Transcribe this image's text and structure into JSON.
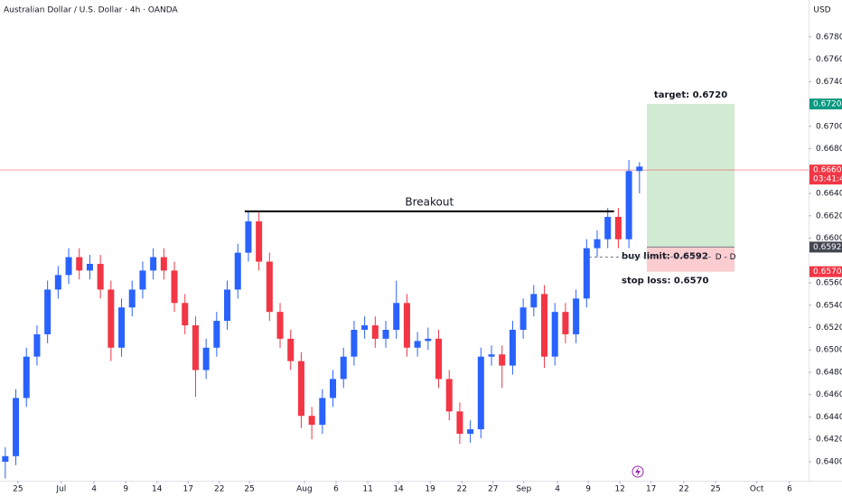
{
  "chart_data": {
    "type": "candlestick",
    "title": "Australian Dollar / U.S. Dollar · 4h · OANDA",
    "currency": "USD",
    "x": [
      1,
      3,
      5,
      7,
      9,
      11,
      13,
      15,
      17,
      19,
      21,
      23,
      25,
      27,
      29,
      31,
      33,
      35,
      37,
      39,
      41,
      43,
      45,
      47,
      49,
      51,
      53,
      55,
      57,
      59,
      61,
      63,
      65,
      67,
      69,
      71,
      73,
      75,
      77,
      79,
      81,
      83,
      85,
      87,
      89,
      91,
      93,
      95,
      97,
      99,
      101,
      103,
      105,
      107,
      109,
      111,
      113,
      115,
      117,
      119,
      121
    ],
    "open": [
      0.64,
      0.6405,
      0.6457,
      0.6494,
      0.6514,
      0.6554,
      0.6567,
      0.6583,
      0.6571,
      0.6577,
      0.6554,
      0.6502,
      0.6538,
      0.6554,
      0.6571,
      0.6583,
      0.6571,
      0.6542,
      0.6522,
      0.6482,
      0.6502,
      0.6526,
      0.6554,
      0.6587,
      0.6615,
      0.6579,
      0.6534,
      0.651,
      0.649,
      0.6441,
      0.6433,
      0.6457,
      0.6474,
      0.6494,
      0.6518,
      0.6522,
      0.651,
      0.6518,
      0.6542,
      0.6502,
      0.6508,
      0.651,
      0.6474,
      0.6445,
      0.6425,
      0.6429,
      0.6494,
      0.6496,
      0.6486,
      0.6518,
      0.6538,
      0.655,
      0.6494,
      0.6534,
      0.6514,
      0.6546,
      0.6591,
      0.6599,
      0.6619,
      0.6599,
      0.666
    ],
    "high": [
      0.6413,
      0.6465,
      0.6502,
      0.6522,
      0.6562,
      0.6575,
      0.6591,
      0.6591,
      0.6585,
      0.6585,
      0.6562,
      0.6546,
      0.6562,
      0.6579,
      0.6591,
      0.6591,
      0.6579,
      0.655,
      0.653,
      0.651,
      0.6534,
      0.6562,
      0.6595,
      0.6624,
      0.6623,
      0.6587,
      0.6542,
      0.6518,
      0.6498,
      0.6449,
      0.6465,
      0.6482,
      0.6502,
      0.6526,
      0.653,
      0.653,
      0.6526,
      0.6562,
      0.655,
      0.6516,
      0.652,
      0.6518,
      0.6482,
      0.6453,
      0.6437,
      0.6502,
      0.6504,
      0.6504,
      0.6526,
      0.6546,
      0.6558,
      0.6558,
      0.6542,
      0.6542,
      0.6554,
      0.6599,
      0.6607,
      0.6627,
      0.6627,
      0.667,
      0.6668
    ],
    "low": [
      0.6385,
      0.6397,
      0.6449,
      0.6486,
      0.6506,
      0.6546,
      0.6559,
      0.6563,
      0.6563,
      0.6546,
      0.649,
      0.6494,
      0.653,
      0.6546,
      0.6563,
      0.6563,
      0.6534,
      0.6514,
      0.6458,
      0.6474,
      0.6494,
      0.6518,
      0.6546,
      0.6579,
      0.6571,
      0.6526,
      0.6502,
      0.6482,
      0.643,
      0.642,
      0.6425,
      0.6449,
      0.6466,
      0.6486,
      0.651,
      0.6502,
      0.6502,
      0.651,
      0.6494,
      0.6494,
      0.65,
      0.6466,
      0.6437,
      0.6416,
      0.6417,
      0.6421,
      0.6486,
      0.6466,
      0.6478,
      0.651,
      0.653,
      0.6484,
      0.6486,
      0.6506,
      0.6506,
      0.6538,
      0.6583,
      0.6591,
      0.6591,
      0.6591,
      0.664
    ],
    "close": [
      0.6405,
      0.6457,
      0.6494,
      0.6514,
      0.6554,
      0.6567,
      0.6583,
      0.6571,
      0.6577,
      0.6554,
      0.6502,
      0.6538,
      0.6554,
      0.6571,
      0.6583,
      0.6571,
      0.6542,
      0.6522,
      0.6482,
      0.6502,
      0.6526,
      0.6554,
      0.6587,
      0.6615,
      0.6579,
      0.6534,
      0.651,
      0.649,
      0.6441,
      0.6433,
      0.6457,
      0.6474,
      0.6494,
      0.6518,
      0.6522,
      0.651,
      0.6518,
      0.6542,
      0.6502,
      0.6508,
      0.651,
      0.6474,
      0.6445,
      0.6425,
      0.6429,
      0.6494,
      0.6496,
      0.6486,
      0.6518,
      0.6538,
      0.655,
      0.6494,
      0.6534,
      0.6514,
      0.6546,
      0.6591,
      0.6599,
      0.6619,
      0.6599,
      0.666,
      0.6664
    ],
    "up_color": "#2962ff",
    "down_color": "#f23645",
    "xlim": [
      0,
      153
    ],
    "xticks": [
      {
        "value": 3.4,
        "label": "25"
      },
      {
        "value": 11.6,
        "label": "Jul"
      },
      {
        "value": 17.8,
        "label": "4"
      },
      {
        "value": 23.8,
        "label": "9"
      },
      {
        "value": 29.7,
        "label": "14"
      },
      {
        "value": 35.6,
        "label": "17"
      },
      {
        "value": 41.5,
        "label": "22"
      },
      {
        "value": 47.2,
        "label": "25"
      },
      {
        "value": 57.6,
        "label": "Aug"
      },
      {
        "value": 63.6,
        "label": "6"
      },
      {
        "value": 69.6,
        "label": "11"
      },
      {
        "value": 75.4,
        "label": "14"
      },
      {
        "value": 81.4,
        "label": "19"
      },
      {
        "value": 87.4,
        "label": "22"
      },
      {
        "value": 93.3,
        "label": "27"
      },
      {
        "value": 99.1,
        "label": "Sep"
      },
      {
        "value": 105.5,
        "label": "4"
      },
      {
        "value": 111.3,
        "label": "9"
      },
      {
        "value": 117.3,
        "label": "12"
      },
      {
        "value": 123.2,
        "label": "17"
      },
      {
        "value": 129.4,
        "label": "22"
      },
      {
        "value": 135.4,
        "label": "25"
      },
      {
        "value": 143.2,
        "label": "Oct"
      },
      {
        "value": 149.4,
        "label": "6"
      }
    ],
    "ylim": [
      0.6383,
      0.6813
    ],
    "yticks": [
      {
        "value": 0.678,
        "label": "0.67800"
      },
      {
        "value": 0.676,
        "label": "0.67600"
      },
      {
        "value": 0.674,
        "label": "0.67400"
      },
      {
        "value": 0.67,
        "label": "0.67000"
      },
      {
        "value": 0.668,
        "label": "0.66800"
      },
      {
        "value": 0.664,
        "label": "0.66400"
      },
      {
        "value": 0.662,
        "label": "0.66200"
      },
      {
        "value": 0.66,
        "label": "0.66000"
      },
      {
        "value": 0.656,
        "label": "0.65600"
      },
      {
        "value": 0.654,
        "label": "0.65400"
      },
      {
        "value": 0.652,
        "label": "0.65200"
      },
      {
        "value": 0.65,
        "label": "0.65000"
      },
      {
        "value": 0.648,
        "label": "0.64800"
      },
      {
        "value": 0.646,
        "label": "0.64600"
      },
      {
        "value": 0.644,
        "label": "0.64400"
      },
      {
        "value": 0.642,
        "label": "0.64200"
      },
      {
        "value": 0.64,
        "label": "0.64000"
      }
    ],
    "price_tags": [
      {
        "value": 0.672,
        "label": "0.67200",
        "color": "#089981"
      },
      {
        "value": 0.66609,
        "label": "0.66609",
        "color": "#f23645",
        "countdown": "03:41:40"
      },
      {
        "value": 0.6592,
        "label": "0.65920",
        "color": "#434651"
      },
      {
        "value": 0.657,
        "label": "0.65700",
        "color": "#f23645"
      }
    ],
    "breakout": {
      "label": "Breakout",
      "x": [
        46.3,
        116.2
      ],
      "y": 0.6624
    },
    "order_line": {
      "label": "D - D",
      "x": [
        110.4,
        135
      ],
      "y": 0.6583
    },
    "position": {
      "x": [
        122.4,
        139
      ],
      "target": 0.672,
      "entry": 0.6592,
      "stop": 0.657,
      "target_label": "target: 0.6720",
      "entry_label": "buy limit: 0.6592",
      "stop_label": "stop loss: 0.6570"
    }
  }
}
